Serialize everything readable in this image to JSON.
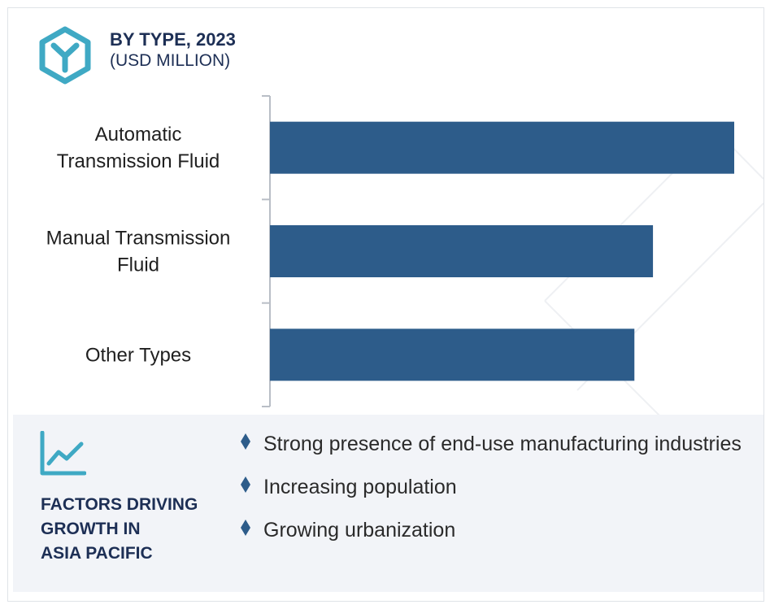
{
  "header": {
    "title": "BY TYPE, 2023",
    "subtitle": "(USD MILLION)",
    "icon": "cube-y-icon"
  },
  "colors": {
    "bar": "#2d5c8a",
    "title": "#1d2f55",
    "accent": "#3fa9c4",
    "footer_bg": "#f2f4f8"
  },
  "chart_data": {
    "type": "bar",
    "orientation": "horizontal",
    "categories": [
      [
        "Automatic",
        "Transmission Fluid"
      ],
      [
        "Manual Transmission",
        "Fluid"
      ],
      [
        "Other Types"
      ]
    ],
    "values": [
      100,
      82.5,
      78.5
    ],
    "xlim": [
      0,
      100
    ],
    "grid": false,
    "legend": "none"
  },
  "footer": {
    "icon": "trend-chart-icon",
    "title_lines": [
      "FACTORS DRIVING",
      "GROWTH IN",
      "ASIA PACIFIC"
    ],
    "bullets": [
      "Strong presence of end-use manufacturing industries",
      "Increasing population",
      "Growing urbanization"
    ]
  }
}
